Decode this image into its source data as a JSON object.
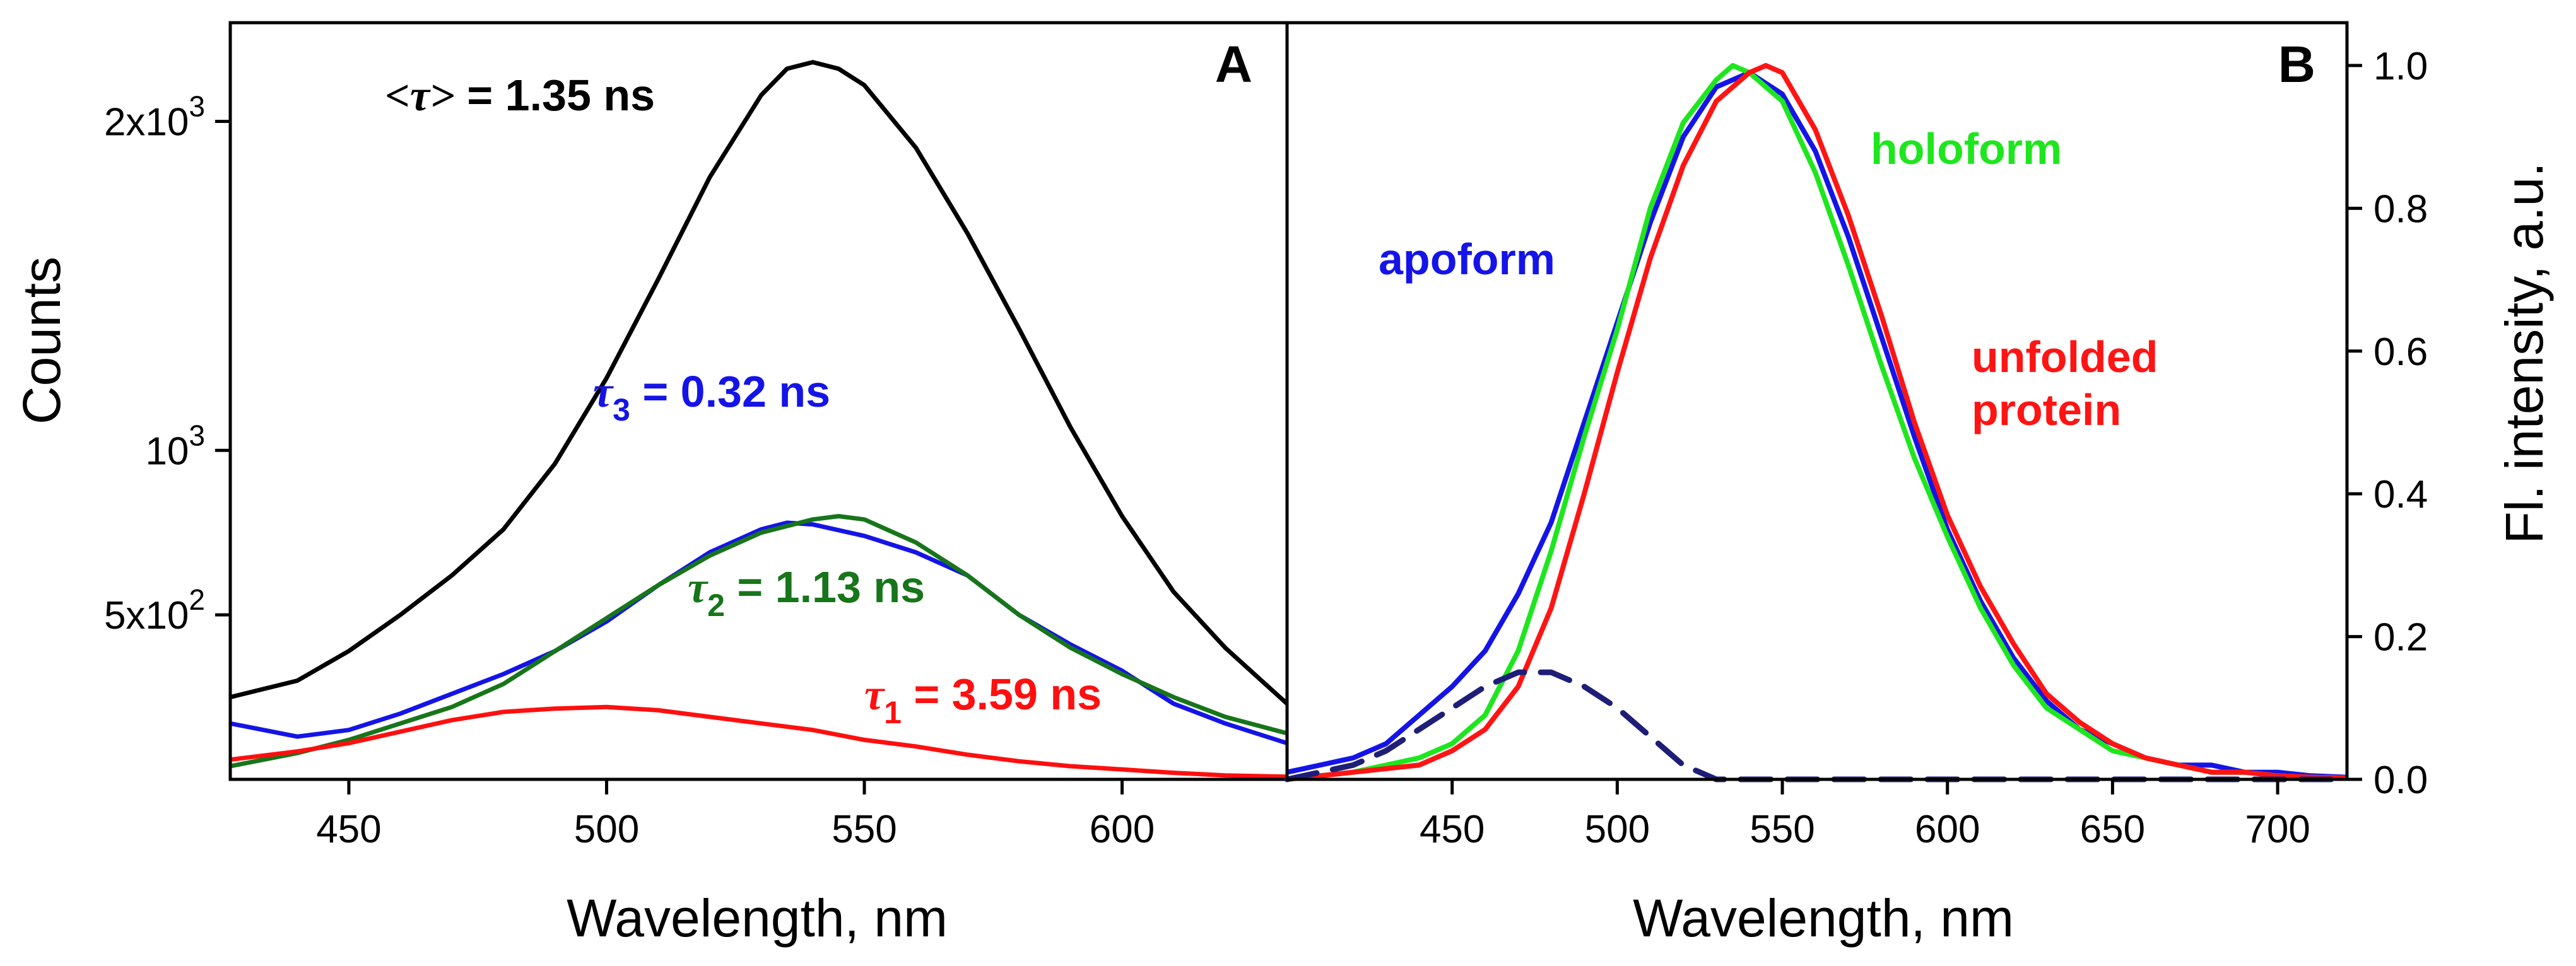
{
  "chart_data": [
    {
      "type": "line",
      "panel": "A",
      "ylabel": "Counts",
      "xlabel": "Wavelength, nm",
      "xlim": [
        427,
        632
      ],
      "ylim": [
        0,
        2300
      ],
      "x_ticks": [
        {
          "value": 450,
          "label": "450"
        },
        {
          "value": 500,
          "label": "500"
        },
        {
          "value": 550,
          "label": "550"
        },
        {
          "value": 600,
          "label": "600"
        }
      ],
      "y_ticks": [
        {
          "value": 500,
          "mant": "5x10",
          "exp": "2"
        },
        {
          "value": 1000,
          "mant": "10",
          "exp": "3"
        },
        {
          "value": 2000,
          "mant": "2x10",
          "exp": "3"
        }
      ],
      "series": [
        {
          "name": "mean",
          "color": "#000000",
          "x": [
            427,
            440,
            450,
            460,
            470,
            480,
            490,
            500,
            510,
            520,
            530,
            535,
            540,
            545,
            550,
            560,
            570,
            580,
            590,
            600,
            610,
            620,
            632
          ],
          "y": [
            250,
            300,
            390,
            500,
            620,
            760,
            960,
            1220,
            1520,
            1830,
            2080,
            2160,
            2180,
            2160,
            2110,
            1920,
            1660,
            1370,
            1070,
            800,
            570,
            400,
            230
          ]
        },
        {
          "name": "tau3",
          "color": "#1414e8",
          "x": [
            427,
            440,
            450,
            460,
            470,
            480,
            490,
            500,
            510,
            520,
            530,
            535,
            540,
            550,
            560,
            570,
            580,
            590,
            600,
            610,
            620,
            632
          ],
          "y": [
            170,
            130,
            150,
            200,
            260,
            320,
            390,
            480,
            590,
            690,
            760,
            780,
            775,
            740,
            690,
            620,
            500,
            410,
            330,
            230,
            170,
            110
          ]
        },
        {
          "name": "tau2",
          "color": "#17751a",
          "x": [
            427,
            440,
            450,
            460,
            470,
            480,
            490,
            500,
            510,
            520,
            530,
            540,
            545,
            550,
            560,
            570,
            580,
            590,
            600,
            610,
            620,
            632
          ],
          "y": [
            40,
            80,
            120,
            170,
            220,
            290,
            390,
            490,
            590,
            680,
            750,
            790,
            800,
            790,
            720,
            620,
            500,
            400,
            320,
            250,
            190,
            140
          ]
        },
        {
          "name": "tau1",
          "color": "#ff0f0f",
          "x": [
            427,
            440,
            450,
            460,
            470,
            480,
            490,
            500,
            510,
            520,
            530,
            540,
            550,
            560,
            570,
            580,
            590,
            600,
            610,
            620,
            632
          ],
          "y": [
            60,
            85,
            110,
            145,
            180,
            205,
            215,
            220,
            210,
            190,
            170,
            150,
            120,
            100,
            75,
            55,
            40,
            30,
            20,
            12,
            8
          ]
        }
      ],
      "annotations": [
        {
          "series": "mean",
          "symbol": "<τ>",
          "subscript": "",
          "text": " = 1.35 ns",
          "color": "#000000"
        },
        {
          "series": "tau3",
          "symbol": "τ",
          "subscript": "3",
          "text": " = 0.32 ns",
          "color": "#1414e8"
        },
        {
          "series": "tau2",
          "symbol": "τ",
          "subscript": "2",
          "text": " = 1.13 ns",
          "color": "#17751a"
        },
        {
          "series": "tau1",
          "symbol": "τ",
          "subscript": "1",
          "text": " = 3.59 ns",
          "color": "#ff0f0f"
        }
      ]
    },
    {
      "type": "line",
      "panel": "B",
      "ylabel": "Fl. intensity, a.u.",
      "xlabel": "Wavelength, nm",
      "xlim": [
        400,
        721
      ],
      "ylim": [
        0,
        1.06
      ],
      "x_ticks": [
        {
          "value": 450,
          "label": "450"
        },
        {
          "value": 500,
          "label": "500"
        },
        {
          "value": 550,
          "label": "550"
        },
        {
          "value": 600,
          "label": "600"
        },
        {
          "value": 650,
          "label": "650"
        },
        {
          "value": 700,
          "label": "700"
        }
      ],
      "y_ticks": [
        {
          "value": 0.0,
          "label": "0.0"
        },
        {
          "value": 0.2,
          "label": "0.2"
        },
        {
          "value": 0.4,
          "label": "0.4"
        },
        {
          "value": 0.6,
          "label": "0.6"
        },
        {
          "value": 0.8,
          "label": "0.8"
        },
        {
          "value": 1.0,
          "label": "1.0"
        }
      ],
      "series": [
        {
          "name": "apoform",
          "color": "#1414e8",
          "dash": false,
          "x": [
            400,
            410,
            420,
            430,
            440,
            450,
            460,
            470,
            480,
            490,
            500,
            510,
            520,
            530,
            540,
            550,
            560,
            570,
            580,
            590,
            600,
            610,
            620,
            630,
            640,
            650,
            660,
            670,
            680,
            690,
            700,
            710,
            721
          ],
          "y": [
            0.01,
            0.02,
            0.03,
            0.05,
            0.09,
            0.13,
            0.18,
            0.26,
            0.36,
            0.5,
            0.64,
            0.78,
            0.9,
            0.97,
            0.99,
            0.96,
            0.88,
            0.76,
            0.62,
            0.48,
            0.35,
            0.25,
            0.17,
            0.11,
            0.07,
            0.05,
            0.03,
            0.02,
            0.02,
            0.01,
            0.01,
            0.005,
            0.003
          ]
        },
        {
          "name": "holoform",
          "color": "#1ee61e",
          "dash": false,
          "x": [
            400,
            420,
            440,
            450,
            460,
            470,
            480,
            490,
            500,
            510,
            520,
            530,
            535,
            540,
            550,
            560,
            570,
            580,
            590,
            600,
            610,
            620,
            630,
            640,
            650,
            660,
            670,
            680,
            690,
            700,
            710,
            721
          ],
          "y": [
            0.0,
            0.01,
            0.03,
            0.05,
            0.09,
            0.18,
            0.32,
            0.48,
            0.63,
            0.8,
            0.92,
            0.98,
            1.0,
            0.99,
            0.95,
            0.85,
            0.72,
            0.58,
            0.45,
            0.34,
            0.24,
            0.16,
            0.1,
            0.07,
            0.04,
            0.03,
            0.02,
            0.01,
            0.01,
            0.005,
            0.003,
            0.002
          ]
        },
        {
          "name": "unfolded",
          "color": "#ff1414",
          "dash": false,
          "x": [
            400,
            420,
            440,
            450,
            460,
            470,
            480,
            490,
            500,
            510,
            520,
            530,
            540,
            545,
            550,
            560,
            570,
            580,
            590,
            600,
            610,
            620,
            630,
            640,
            650,
            660,
            670,
            680,
            690,
            700,
            710,
            721
          ],
          "y": [
            0.0,
            0.01,
            0.02,
            0.04,
            0.07,
            0.13,
            0.24,
            0.4,
            0.57,
            0.73,
            0.86,
            0.95,
            0.99,
            1.0,
            0.99,
            0.91,
            0.79,
            0.65,
            0.5,
            0.37,
            0.27,
            0.19,
            0.12,
            0.08,
            0.05,
            0.03,
            0.02,
            0.01,
            0.01,
            0.005,
            0.003,
            0.002
          ]
        },
        {
          "name": "apoform-component",
          "color": "#1e1e78",
          "dash": true,
          "x": [
            400,
            410,
            420,
            430,
            440,
            450,
            460,
            470,
            480,
            490,
            500,
            510,
            520,
            530,
            540,
            560,
            600,
            650,
            721
          ],
          "y": [
            0.0,
            0.01,
            0.02,
            0.04,
            0.07,
            0.1,
            0.13,
            0.15,
            0.15,
            0.13,
            0.1,
            0.06,
            0.02,
            0.0,
            0.0,
            0.0,
            0.0,
            0.0,
            0.0
          ]
        }
      ],
      "annotations": [
        {
          "series": "apoform",
          "lines": [
            "apoform"
          ],
          "color": "#1414e8"
        },
        {
          "series": "holoform",
          "lines": [
            "holoform"
          ],
          "color": "#1ee61e"
        },
        {
          "series": "unfolded",
          "lines": [
            "unfolded",
            "protein"
          ],
          "color": "#ff1414"
        }
      ]
    }
  ]
}
